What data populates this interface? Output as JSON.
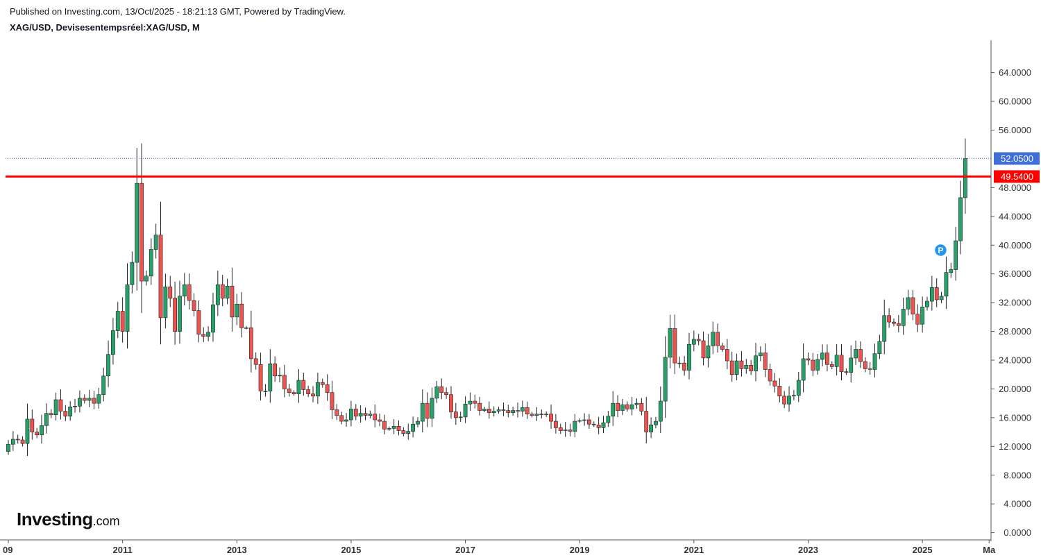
{
  "header": {
    "published": "Published on Investing.com, 13/Oct/2025 - 18:21:13 GMT, Powered by TradingView.",
    "symbol": "XAG/USD, Devisesentempsréel:XAG/USD, M"
  },
  "logo": {
    "main": "Investing",
    "suffix": ".com"
  },
  "colors": {
    "up": "#26a269",
    "down": "#ef5350",
    "wick": "#222222",
    "resistance": "#ff0000",
    "current": "#3f6fd6",
    "marker": "#2196f3",
    "axis": "#555555"
  },
  "chart_data": {
    "type": "candlestick",
    "interval": "monthly",
    "x_axis": {
      "start": "2009-01",
      "end": "2025-11",
      "tick_labels": [
        "09",
        "2011",
        "2013",
        "2015",
        "2017",
        "2019",
        "2021",
        "2023",
        "2025",
        "Ma"
      ],
      "tick_dates": [
        "2009-01",
        "2011-01",
        "2013-01",
        "2015-01",
        "2017-01",
        "2019-01",
        "2021-01",
        "2023-01",
        "2025-01",
        "2026-03"
      ]
    },
    "y_axis": {
      "position": "right",
      "ylim": [
        -1.0,
        68.5
      ],
      "tick_values": [
        0,
        4,
        8,
        12,
        16,
        20,
        24,
        28,
        32,
        36,
        40,
        44,
        48,
        56,
        60,
        64
      ],
      "tick_labels": [
        "0.0000",
        "4.0000",
        "8.0000",
        "12.0000",
        "16.0000",
        "20.0000",
        "24.0000",
        "28.0000",
        "32.0000",
        "36.0000",
        "40.0000",
        "44.0000",
        "48.0000",
        "56.0000",
        "60.0000",
        "64.0000"
      ]
    },
    "resistance": {
      "value": 49.54,
      "label": "49.5400"
    },
    "current": {
      "value": 52.05,
      "label": "52.0500"
    },
    "marker": {
      "label": "P",
      "date": "2025-06",
      "value": 39.3
    },
    "grid": false,
    "legend": "none",
    "closes": [
      12.3,
      13.0,
      12.9,
      12.4,
      15.8,
      14.0,
      13.6,
      14.9,
      16.6,
      16.4,
      18.5,
      16.9,
      16.2,
      17.5,
      17.6,
      18.7,
      18.4,
      18.7,
      18.0,
      19.2,
      21.8,
      24.8,
      28.1,
      30.8,
      28.0,
      34.5,
      37.6,
      48.6,
      35.0,
      35.7,
      39.4,
      41.4,
      29.9,
      34.2,
      32.6,
      28.0,
      32.9,
      34.5,
      32.3,
      30.9,
      27.6,
      27.3,
      27.9,
      31.7,
      34.5,
      32.6,
      34.3,
      30.0,
      31.8,
      28.5,
      28.5,
      24.2,
      23.4,
      19.7,
      19.7,
      23.5,
      21.8,
      21.9,
      20.0,
      19.5,
      19.3,
      21.2,
      19.9,
      19.3,
      19.0,
      20.9,
      20.6,
      19.5,
      17.1,
      16.3,
      15.5,
      15.7,
      17.2,
      16.2,
      16.6,
      16.3,
      16.5,
      15.7,
      15.5,
      14.4,
      14.5,
      14.8,
      14.2,
      13.8,
      14.1,
      15.1,
      15.5,
      18.0,
      15.9,
      18.7,
      20.3,
      19.5,
      19.2,
      16.8,
      16.0,
      16.1,
      17.9,
      18.3,
      18.0,
      17.0,
      17.2,
      16.7,
      16.9,
      17.1,
      17.0,
      16.7,
      17.0,
      16.9,
      17.4,
      16.5,
      16.3,
      16.5,
      16.4,
      16.5,
      15.5,
      14.6,
      14.2,
      14.3,
      14.1,
      15.5,
      15.6,
      15.7,
      15.1,
      15.0,
      14.6,
      15.3,
      16.2,
      18.0,
      17.0,
      17.8,
      17.2,
      17.8,
      18.0,
      16.9,
      14.0,
      15.0,
      15.5,
      18.3,
      24.4,
      28.4,
      23.6,
      23.6,
      22.6,
      26.2,
      26.9,
      26.7,
      24.3,
      26.0,
      27.9,
      26.0,
      25.5,
      23.9,
      22.0,
      23.9,
      22.8,
      23.3,
      22.5,
      24.6,
      25.0,
      22.7,
      21.1,
      20.4,
      19.0,
      17.9,
      19.0,
      19.1,
      21.2,
      24.2,
      24.0,
      22.6,
      24.1,
      25.0,
      23.4,
      23.1,
      24.7,
      22.4,
      22.3,
      24.3,
      25.5,
      23.8,
      22.8,
      22.7,
      24.9,
      26.6,
      30.2,
      29.3,
      29.1,
      28.8,
      31.1,
      32.7,
      30.4,
      29.0,
      31.4,
      32.2,
      34.1,
      32.4,
      32.9,
      36.2,
      36.6,
      40.6,
      46.6,
      52.05
    ]
  }
}
